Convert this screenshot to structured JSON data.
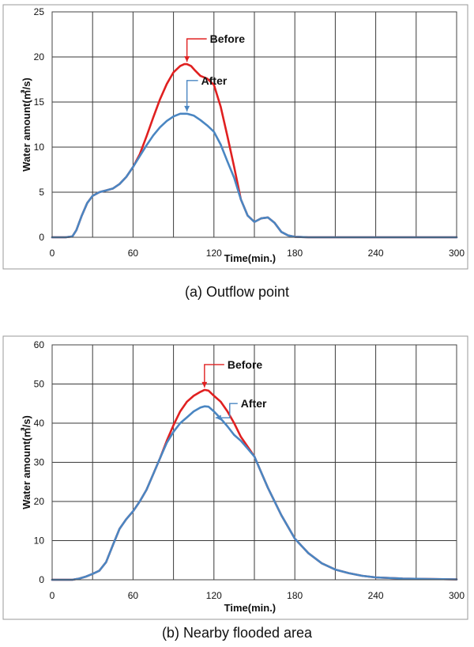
{
  "colors": {
    "before": "#e02020",
    "after": "#4a86c2"
  },
  "chart_data": [
    {
      "type": "line",
      "caption": "(a)  Outflow point",
      "xlabel": "Time(min.)",
      "ylabel": "Water amount(㎥/s)",
      "xlim": [
        0,
        300
      ],
      "ylim": [
        0,
        25
      ],
      "xticks": [
        0,
        60,
        120,
        180,
        240,
        300
      ],
      "yticks": [
        0,
        5,
        10,
        15,
        20,
        25
      ],
      "xgrid": [
        0,
        30,
        60,
        90,
        120,
        150,
        180,
        210,
        240,
        270,
        300
      ],
      "grid": true,
      "series": [
        {
          "name": "Before",
          "color_key": "before",
          "x": [
            0,
            10,
            15,
            18,
            22,
            26,
            30,
            35,
            40,
            45,
            50,
            55,
            60,
            65,
            70,
            75,
            80,
            85,
            90,
            95,
            98,
            100,
            103,
            106,
            110,
            115,
            120,
            125,
            130,
            135,
            140,
            145,
            150,
            155,
            160,
            165,
            170,
            175,
            180,
            190,
            200,
            220,
            250,
            300
          ],
          "y": [
            0,
            0,
            0.1,
            0.8,
            2.4,
            3.8,
            4.6,
            5.0,
            5.2,
            5.4,
            5.9,
            6.7,
            7.8,
            9.2,
            11.2,
            13.3,
            15.3,
            17.0,
            18.3,
            19.0,
            19.2,
            19.2,
            19.0,
            18.5,
            17.9,
            17.6,
            16.9,
            14.5,
            11.2,
            7.8,
            4.2,
            2.4,
            1.7,
            2.1,
            2.2,
            1.6,
            0.6,
            0.2,
            0.05,
            0,
            0,
            0,
            0,
            0
          ]
        },
        {
          "name": "After",
          "color_key": "after",
          "x": [
            0,
            10,
            15,
            18,
            22,
            26,
            30,
            35,
            40,
            45,
            50,
            55,
            60,
            65,
            70,
            75,
            80,
            85,
            90,
            95,
            100,
            105,
            110,
            115,
            120,
            125,
            130,
            135,
            140,
            145,
            150,
            155,
            160,
            165,
            170,
            175,
            180,
            190,
            200,
            220,
            250,
            300
          ],
          "y": [
            0,
            0,
            0.1,
            0.8,
            2.4,
            3.8,
            4.6,
            5.0,
            5.2,
            5.4,
            5.9,
            6.7,
            7.8,
            9.0,
            10.2,
            11.3,
            12.2,
            12.9,
            13.4,
            13.7,
            13.7,
            13.5,
            13.0,
            12.4,
            11.7,
            10.3,
            8.4,
            6.6,
            4.2,
            2.4,
            1.7,
            2.1,
            2.2,
            1.6,
            0.6,
            0.2,
            0.05,
            0,
            0,
            0,
            0,
            0
          ]
        }
      ],
      "annotations": [
        {
          "label": "Before",
          "series": "Before",
          "x": 100
        },
        {
          "label": "After",
          "series": "After",
          "x": 100
        }
      ]
    },
    {
      "type": "line",
      "caption": "(b)  Nearby flooded area",
      "xlabel": "Time(min.)",
      "ylabel": "Water amount(㎥/s)",
      "xlim": [
        0,
        300
      ],
      "ylim": [
        0,
        60
      ],
      "xticks": [
        0,
        60,
        120,
        180,
        240,
        300
      ],
      "yticks": [
        0,
        10,
        20,
        30,
        40,
        50,
        60
      ],
      "xgrid": [
        0,
        30,
        60,
        90,
        120,
        150,
        180,
        210,
        240,
        270,
        300
      ],
      "grid": true,
      "series": [
        {
          "name": "Before",
          "color_key": "before",
          "x": [
            0,
            15,
            20,
            25,
            30,
            35,
            40,
            45,
            50,
            55,
            60,
            65,
            70,
            75,
            80,
            85,
            90,
            95,
            100,
            105,
            110,
            113,
            116,
            120,
            125,
            130,
            135,
            140,
            145,
            150,
            155,
            160,
            165,
            170,
            175,
            180,
            190,
            200,
            210,
            220,
            230,
            240,
            260,
            280,
            300
          ],
          "y": [
            0,
            0,
            0.3,
            0.8,
            1.5,
            2.3,
            4.5,
            8.8,
            13.0,
            15.5,
            17.5,
            20.0,
            23.0,
            27.0,
            31.0,
            35.5,
            39.5,
            43.0,
            45.5,
            47.0,
            48.0,
            48.5,
            48.3,
            47.0,
            45.5,
            43.0,
            40.0,
            36.5,
            34.0,
            31.5,
            27.5,
            23.5,
            20.0,
            16.5,
            13.5,
            10.5,
            6.8,
            4.2,
            2.6,
            1.7,
            1.0,
            0.6,
            0.3,
            0.2,
            0.1
          ]
        },
        {
          "name": "After",
          "color_key": "after",
          "x": [
            0,
            15,
            20,
            25,
            30,
            35,
            40,
            45,
            50,
            55,
            60,
            65,
            70,
            75,
            80,
            85,
            90,
            95,
            100,
            105,
            110,
            113,
            116,
            120,
            125,
            130,
            135,
            140,
            145,
            150,
            155,
            160,
            165,
            170,
            175,
            180,
            190,
            200,
            210,
            220,
            230,
            240,
            260,
            280,
            300
          ],
          "y": [
            0,
            0,
            0.3,
            0.8,
            1.5,
            2.3,
            4.5,
            8.8,
            13.0,
            15.5,
            17.5,
            20.0,
            23.0,
            27.0,
            31.0,
            35.0,
            37.8,
            40.0,
            41.5,
            43.0,
            44.0,
            44.3,
            44.2,
            43.0,
            41.2,
            39.2,
            37.0,
            35.5,
            33.5,
            31.5,
            27.5,
            23.5,
            20.0,
            16.5,
            13.5,
            10.5,
            6.8,
            4.2,
            2.6,
            1.7,
            1.0,
            0.6,
            0.3,
            0.2,
            0.1
          ]
        }
      ],
      "annotations": [
        {
          "label": "Before",
          "series": "Before",
          "x": 113
        },
        {
          "label": "After",
          "series": "After",
          "x": 120
        }
      ]
    }
  ]
}
